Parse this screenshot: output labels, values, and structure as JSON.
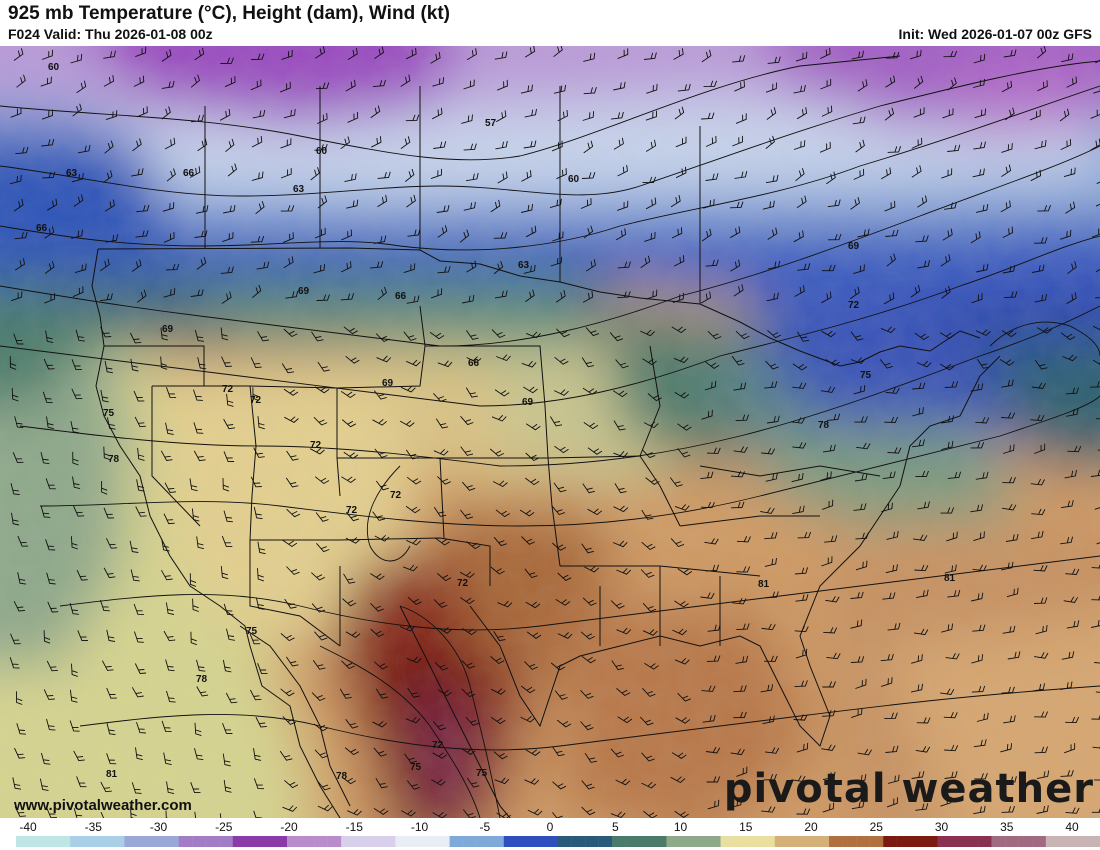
{
  "header": {
    "title": "925 mb Temperature (°C), Height (dam), Wind (kt)",
    "valid": "F024 Valid: Thu 2026-01-08 00z",
    "init": "Init: Wed 2026-01-07 00z GFS"
  },
  "height_labels": [
    {
      "text": "60"
    },
    {
      "text": "57"
    },
    {
      "text": "60"
    },
    {
      "text": "60"
    },
    {
      "text": "63"
    },
    {
      "text": "66"
    },
    {
      "text": "63"
    },
    {
      "text": "66"
    },
    {
      "text": "63"
    },
    {
      "text": "66"
    },
    {
      "text": "69"
    },
    {
      "text": "69"
    },
    {
      "text": "69"
    },
    {
      "text": "72"
    },
    {
      "text": "72"
    },
    {
      "text": "66"
    },
    {
      "text": "69"
    },
    {
      "text": "69"
    },
    {
      "text": "72"
    },
    {
      "text": "75"
    },
    {
      "text": "75"
    },
    {
      "text": "78"
    },
    {
      "text": "78"
    },
    {
      "text": "72"
    },
    {
      "text": "72"
    },
    {
      "text": "72"
    },
    {
      "text": "72"
    },
    {
      "text": "81"
    },
    {
      "text": "81"
    },
    {
      "text": "75"
    },
    {
      "text": "78"
    },
    {
      "text": "78"
    },
    {
      "text": "81"
    },
    {
      "text": "72"
    },
    {
      "text": "75"
    },
    {
      "text": "75"
    }
  ],
  "footer": {
    "url": "www.pivotalweather.com",
    "logo": "pivotal weather"
  },
  "colorbar": {
    "ticks": [
      "-40",
      "-35",
      "-30",
      "-25",
      "-20",
      "-15",
      "-10",
      "-5",
      "0",
      "5",
      "10",
      "15",
      "20",
      "25",
      "30",
      "35",
      "40"
    ],
    "colors": [
      "#bfe6e6",
      "#a9cfe6",
      "#9aa8d8",
      "#a37cc8",
      "#8b3aa8",
      "#b98ccc",
      "#d8d0ea",
      "#e8eef4",
      "#7fa9d8",
      "#2f4fbf",
      "#2a5a7a",
      "#4a7a6a",
      "#8ea88a",
      "#e8dfa0",
      "#d6b07a",
      "#b07040",
      "#7a1a10",
      "#8a3050",
      "#a06a80",
      "#c8b4b4"
    ]
  }
}
